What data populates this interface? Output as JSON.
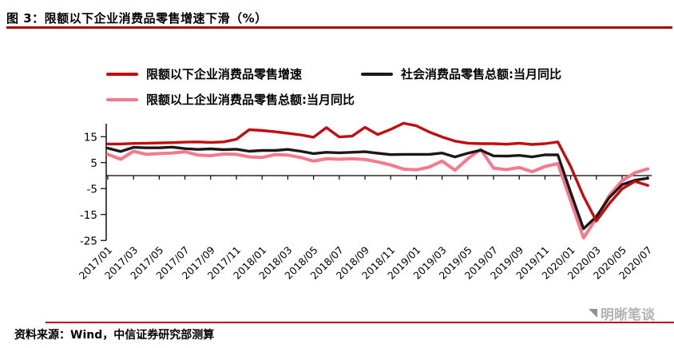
{
  "header": {
    "title": "图 3：限额以下企业消费品零售增速下滑（%）"
  },
  "legend": {
    "items": [
      {
        "label": "限额以下企业消费品零售增速",
        "color": "#c20d10"
      },
      {
        "label": "社会消费品零售总额:当月同比",
        "color": "#1f1717"
      },
      {
        "label": "限额以上企业消费品零售总额:当月同比",
        "color": "#f4798b"
      }
    ]
  },
  "chart_data": {
    "type": "line",
    "unit": "%",
    "title": "限额以下企业消费品零售增速下滑（%）",
    "x": [
      "2017/01",
      "2017/02",
      "2017/03",
      "2017/04",
      "2017/05",
      "2017/06",
      "2017/07",
      "2017/08",
      "2017/09",
      "2017/10",
      "2017/11",
      "2017/12",
      "2018/01",
      "2018/02",
      "2018/03",
      "2018/04",
      "2018/05",
      "2018/06",
      "2018/07",
      "2018/08",
      "2018/09",
      "2018/10",
      "2018/11",
      "2018/12",
      "2019/01",
      "2019/02",
      "2019/03",
      "2019/04",
      "2019/05",
      "2019/06",
      "2019/07",
      "2019/08",
      "2019/09",
      "2019/10",
      "2019/11",
      "2019/12",
      "2020/01",
      "2020/02",
      "2020/03",
      "2020/04",
      "2020/05",
      "2020/06",
      "2020/07"
    ],
    "x_tick_labels": [
      "2017/01",
      "2017/03",
      "2017/05",
      "2017/07",
      "2017/09",
      "2017/11",
      "2018/01",
      "2018/03",
      "2018/05",
      "2018/07",
      "2018/09",
      "2018/11",
      "2019/01",
      "2019/03",
      "2019/05",
      "2019/07",
      "2019/09",
      "2019/11",
      "2020/01",
      "2020/03",
      "2020/05",
      "2020/07"
    ],
    "ylim": [
      -25,
      20
    ],
    "yticks": [
      15,
      5,
      -5,
      -15,
      -25
    ],
    "grid": false,
    "legend_position": "top",
    "series": [
      {
        "name": "限额以下企业消费品零售增速",
        "color": "#c20d10",
        "values": [
          12.2,
          12.2,
          12.4,
          12.5,
          12.6,
          12.7,
          12.9,
          13.0,
          12.8,
          13.0,
          14.0,
          17.7,
          17.4,
          16.9,
          16.3,
          15.7,
          14.8,
          18.5,
          14.9,
          15.2,
          18.6,
          15.8,
          17.8,
          20.2,
          19.2,
          16.8,
          14.9,
          13.3,
          12.5,
          12.3,
          12.3,
          12.1,
          12.5,
          12.0,
          12.3,
          13.0,
          3.5,
          -8.0,
          -17.5,
          -10.8,
          -5.1,
          -2.2,
          -3.8
        ]
      },
      {
        "name": "社会消费品零售总额:当月同比",
        "color": "#1f1717",
        "values": [
          10.6,
          9.3,
          10.9,
          10.7,
          10.7,
          11.0,
          10.4,
          10.1,
          10.3,
          10.0,
          10.2,
          9.4,
          9.7,
          9.7,
          10.1,
          9.4,
          8.5,
          9.0,
          8.8,
          9.0,
          9.2,
          8.6,
          8.1,
          8.2,
          8.2,
          8.2,
          8.7,
          7.2,
          8.6,
          9.8,
          7.6,
          7.5,
          7.8,
          7.2,
          8.0,
          8.0,
          -6.5,
          -20.5,
          -15.8,
          -8.5,
          -3.5,
          -1.8,
          -1.0
        ]
      },
      {
        "name": "限额以上企业消费品零售总额:当月同比",
        "color": "#f4798b",
        "values": [
          8.2,
          6.3,
          9.4,
          8.2,
          8.5,
          8.7,
          9.2,
          7.9,
          7.7,
          8.3,
          8.2,
          7.2,
          7.0,
          8.1,
          7.9,
          7.0,
          5.6,
          6.5,
          6.3,
          6.5,
          6.2,
          5.3,
          4.1,
          2.5,
          2.2,
          3.3,
          5.6,
          2.1,
          6.5,
          10.1,
          2.9,
          2.3,
          3.1,
          1.5,
          3.5,
          4.6,
          -9.7,
          -24.0,
          -16.5,
          -7.7,
          -2.0,
          1.1,
          2.6
        ]
      }
    ]
  },
  "footer": {
    "source": "资料来源：Wind，中信证券研究部测算"
  },
  "watermark": {
    "text": "明晰笔谈"
  }
}
